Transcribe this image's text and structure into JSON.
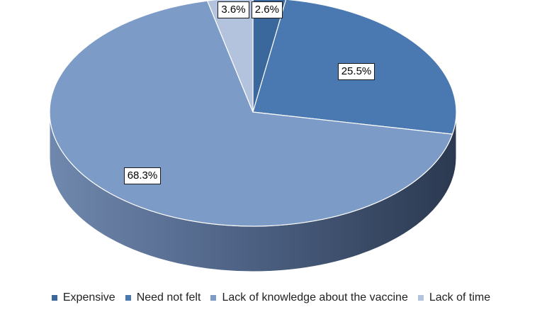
{
  "chart_data": {
    "type": "pie",
    "style": "3d",
    "title": "",
    "legend_position": "bottom",
    "slices": [
      {
        "label": "Expensive",
        "value": 2.6,
        "display": "2.6%",
        "color": "#3a679c"
      },
      {
        "label": "Need not felt",
        "value": 25.5,
        "display": "25.5%",
        "color": "#4a78b0"
      },
      {
        "label": "Lack of knowledge about the vaccine",
        "value": 68.3,
        "display": "68.3%",
        "color": "#7d9bc7"
      },
      {
        "label": "Lack of time",
        "value": 3.6,
        "display": "3.6%",
        "color": "#b3c3de"
      }
    ]
  }
}
